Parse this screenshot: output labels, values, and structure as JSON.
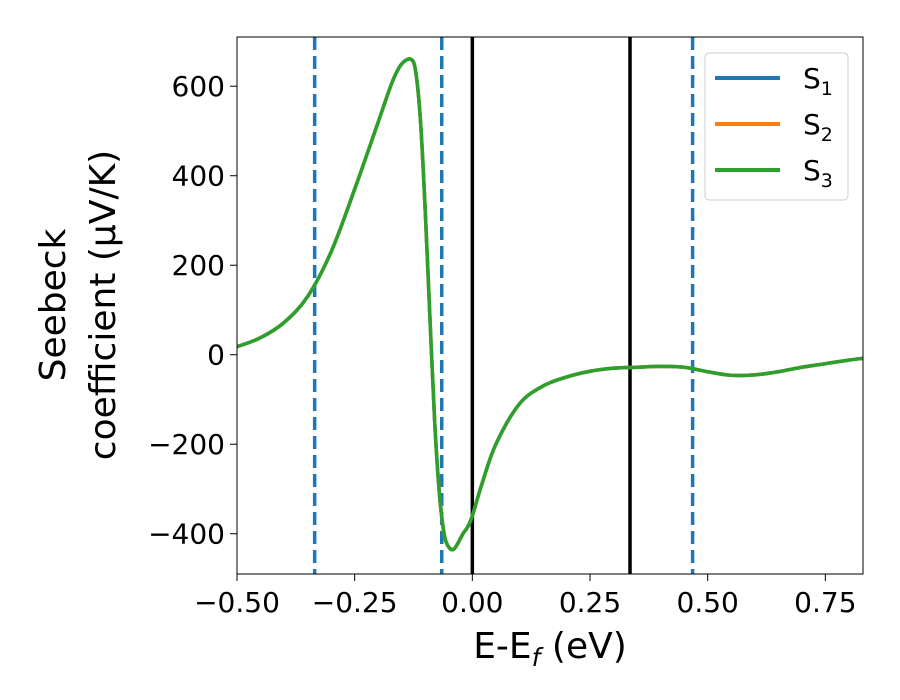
{
  "chart_data": {
    "type": "line",
    "title": "",
    "xlabel": {
      "base": "E-E",
      "sub": "f",
      "suffix": " (eV)"
    },
    "ylabel": {
      "line1": "Seebeck",
      "line2": "coefficient  (μV/K)"
    },
    "xlim": [
      -0.5,
      0.83
    ],
    "ylim": [
      -490,
      710
    ],
    "xticks": [
      -0.5,
      -0.25,
      0.0,
      0.25,
      0.5,
      0.75
    ],
    "xtick_labels": [
      "−0.50",
      "−0.25",
      "0.00",
      "0.25",
      "0.50",
      "0.75"
    ],
    "yticks": [
      -400,
      -200,
      0,
      200,
      400,
      600
    ],
    "ytick_labels": [
      "−400",
      "−200",
      "0",
      "200",
      "400",
      "600"
    ],
    "legend_position": "top-right",
    "series": [
      {
        "name": "S",
        "sub": "1",
        "color": "#1f77b4",
        "x": [
          -0.5,
          -0.45,
          -0.4,
          -0.35,
          -0.3,
          -0.25,
          -0.2,
          -0.17,
          -0.15,
          -0.13,
          -0.12,
          -0.11,
          -0.1,
          -0.09,
          -0.08,
          -0.07,
          -0.06,
          -0.05,
          -0.04,
          -0.03,
          -0.02,
          -0.01,
          0.0,
          0.02,
          0.05,
          0.1,
          0.15,
          0.2,
          0.25,
          0.3,
          0.35,
          0.4,
          0.45,
          0.5,
          0.55,
          0.6,
          0.65,
          0.7,
          0.75,
          0.8,
          0.83
        ],
        "y": [
          18,
          38,
          72,
          130,
          230,
          370,
          520,
          610,
          650,
          660,
          630,
          520,
          320,
          80,
          -150,
          -310,
          -400,
          -430,
          -435,
          -420,
          -400,
          -385,
          -360,
          -290,
          -200,
          -110,
          -70,
          -50,
          -37,
          -30,
          -28,
          -26,
          -28,
          -38,
          -46,
          -45,
          -38,
          -28,
          -20,
          -12,
          -8
        ]
      },
      {
        "name": "S",
        "sub": "2",
        "color": "#ff7f0e",
        "x": [
          -0.5,
          -0.45,
          -0.4,
          -0.35,
          -0.3,
          -0.25,
          -0.2,
          -0.17,
          -0.15,
          -0.13,
          -0.12,
          -0.11,
          -0.1,
          -0.09,
          -0.08,
          -0.07,
          -0.06,
          -0.05,
          -0.04,
          -0.03,
          -0.02,
          -0.01,
          0.0,
          0.02,
          0.05,
          0.1,
          0.15,
          0.2,
          0.25,
          0.3,
          0.35,
          0.4,
          0.45,
          0.5,
          0.55,
          0.6,
          0.65,
          0.7,
          0.75,
          0.8,
          0.83
        ],
        "y": [
          18,
          38,
          72,
          130,
          230,
          370,
          520,
          610,
          650,
          660,
          630,
          520,
          320,
          80,
          -150,
          -310,
          -400,
          -430,
          -435,
          -420,
          -400,
          -385,
          -360,
          -290,
          -200,
          -110,
          -70,
          -50,
          -37,
          -30,
          -28,
          -26,
          -28,
          -38,
          -46,
          -45,
          -38,
          -28,
          -20,
          -12,
          -8
        ]
      },
      {
        "name": "S",
        "sub": "3",
        "color": "#2ca02c",
        "x": [
          -0.5,
          -0.45,
          -0.4,
          -0.35,
          -0.3,
          -0.25,
          -0.2,
          -0.17,
          -0.15,
          -0.13,
          -0.12,
          -0.11,
          -0.1,
          -0.09,
          -0.08,
          -0.07,
          -0.06,
          -0.05,
          -0.04,
          -0.03,
          -0.02,
          -0.01,
          0.0,
          0.02,
          0.05,
          0.1,
          0.15,
          0.2,
          0.25,
          0.3,
          0.35,
          0.4,
          0.45,
          0.5,
          0.55,
          0.6,
          0.65,
          0.7,
          0.75,
          0.8,
          0.83
        ],
        "y": [
          18,
          38,
          72,
          130,
          230,
          370,
          520,
          610,
          650,
          660,
          630,
          520,
          320,
          80,
          -150,
          -310,
          -400,
          -430,
          -435,
          -420,
          -400,
          -385,
          -360,
          -290,
          -200,
          -110,
          -70,
          -50,
          -37,
          -30,
          -28,
          -26,
          -28,
          -38,
          -46,
          -45,
          -38,
          -28,
          -20,
          -12,
          -8
        ]
      }
    ],
    "vlines": [
      {
        "x": -0.335,
        "style": "dashed",
        "color": "#1f77b4"
      },
      {
        "x": -0.065,
        "style": "dashed",
        "color": "#1f77b4"
      },
      {
        "x": 0.468,
        "style": "dashed",
        "color": "#1f77b4"
      },
      {
        "x": 0.0,
        "style": "solid",
        "color": "#000000"
      },
      {
        "x": 0.335,
        "style": "solid",
        "color": "#000000"
      }
    ]
  }
}
